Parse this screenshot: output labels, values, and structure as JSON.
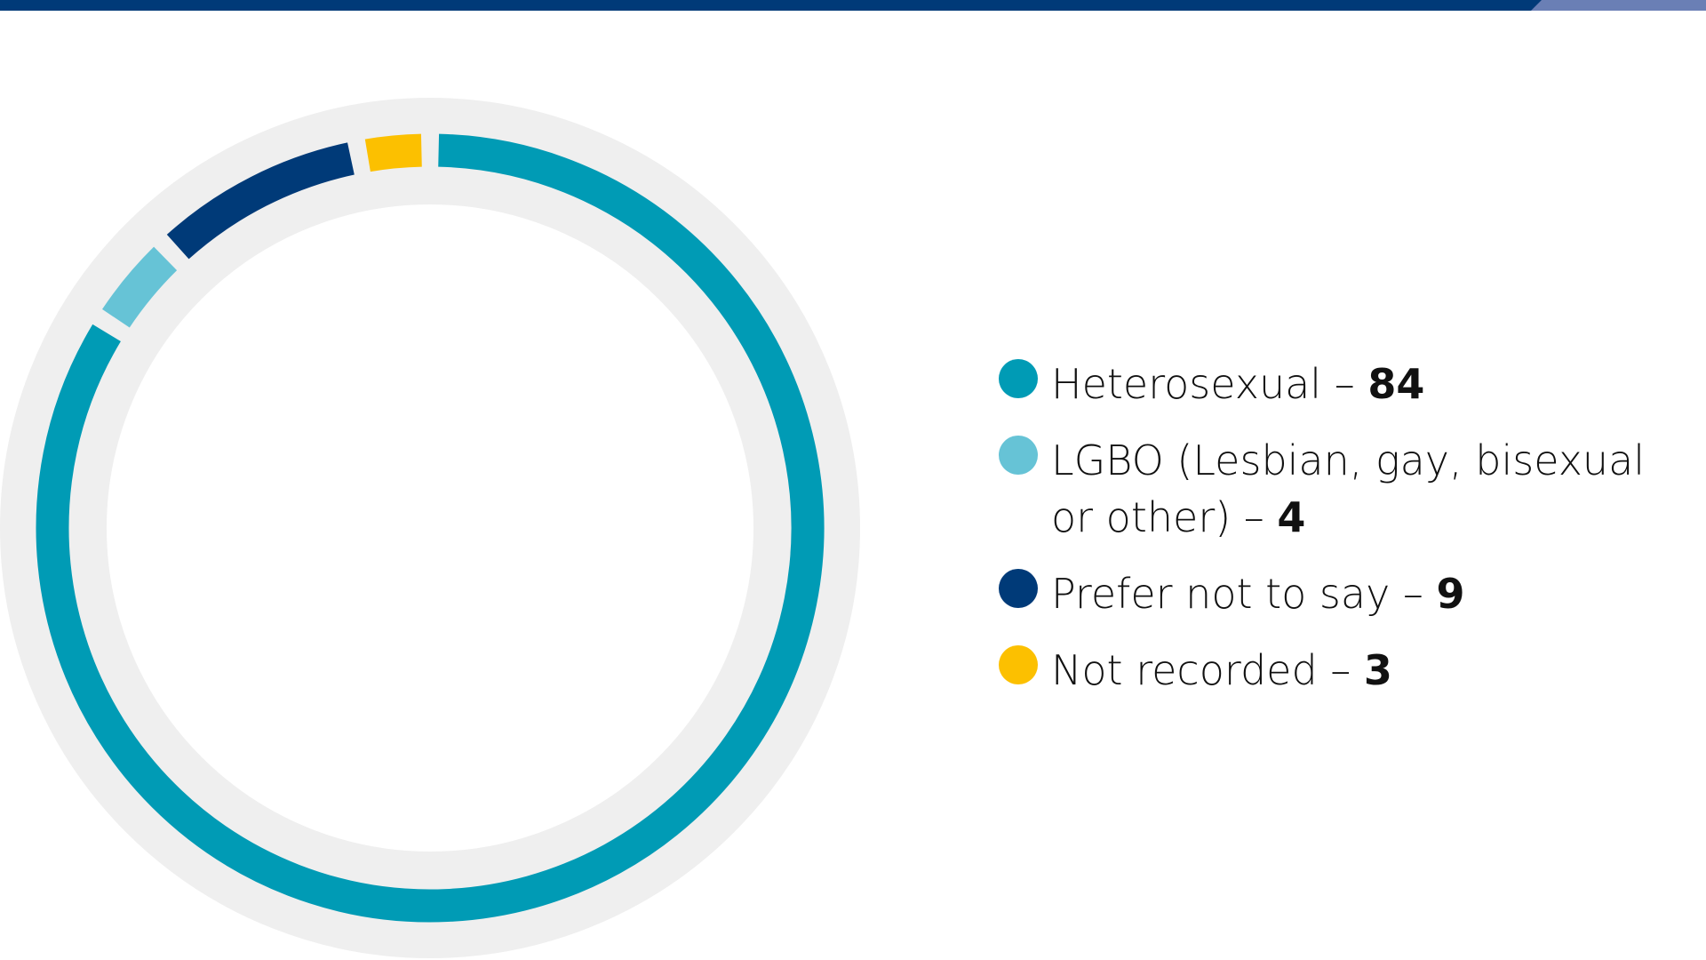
{
  "chart_data": {
    "type": "donut",
    "categories": [
      "Heterosexual",
      "LGBO (Lesbian, gay, bisexual or other)",
      "Prefer not to say",
      "Not recorded"
    ],
    "values": [
      84,
      4,
      9,
      3
    ],
    "colors": [
      "#009bb5",
      "#66c3d6",
      "#003a78",
      "#fcc000"
    ],
    "separator": "–"
  }
}
